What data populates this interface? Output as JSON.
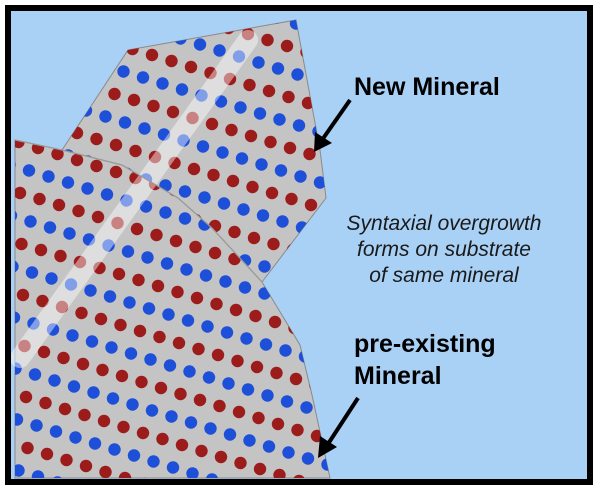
{
  "labels": {
    "new_mineral": "New Mineral",
    "caption_line1": "Syntaxial overgrowth",
    "caption_line2": "forms on substrate",
    "caption_line3": "of same mineral",
    "pre_existing_line1": "pre-existing",
    "pre_existing_line2": "Mineral"
  },
  "colors": {
    "background": "#a9d0f5",
    "frame": "#000000",
    "crystal_fill": "#c4c4c4",
    "atom_red": "#9c1c1c",
    "atom_blue": "#1d4fd8",
    "highlight_band": "#ffffff"
  },
  "atom_pattern": "alternating red and blue rows on a diagonal lattice"
}
